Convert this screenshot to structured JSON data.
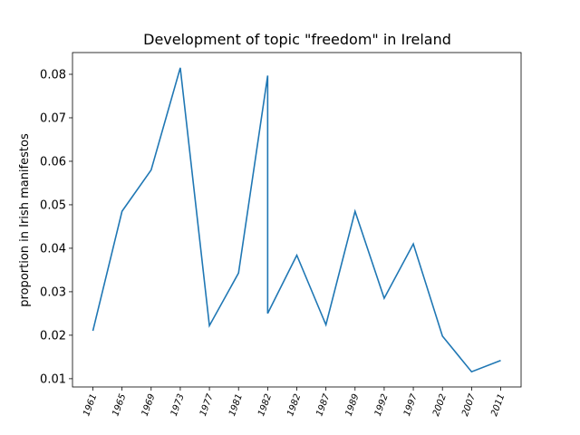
{
  "chart_data": {
    "type": "line",
    "title": "Development of topic \"freedom\" in Ireland",
    "ylabel": "proportion in Irish manifestos",
    "x": [
      0,
      1,
      2,
      3,
      4,
      5,
      6,
      6,
      7,
      8,
      9,
      10,
      11,
      12,
      13,
      14
    ],
    "series": [
      {
        "name": "freedom",
        "color": "#1f77b4",
        "values": [
          0.021,
          0.0485,
          0.058,
          0.0815,
          0.0222,
          0.0343,
          0.0797,
          0.025,
          0.0384,
          0.0224,
          0.0485,
          0.0285,
          0.041,
          0.0198,
          0.0116,
          0.0142
        ]
      }
    ],
    "xlim": [
      -0.7,
      14.7
    ],
    "xticks": [
      {
        "value": 0,
        "label": "1961"
      },
      {
        "value": 1,
        "label": "1965"
      },
      {
        "value": 2,
        "label": "1969"
      },
      {
        "value": 3,
        "label": "1973"
      },
      {
        "value": 4,
        "label": "1977"
      },
      {
        "value": 5,
        "label": "1981"
      },
      {
        "value": 6,
        "label": "1982"
      },
      {
        "value": 7,
        "label": "1982"
      },
      {
        "value": 8,
        "label": "1987"
      },
      {
        "value": 9,
        "label": "1989"
      },
      {
        "value": 10,
        "label": "1992"
      },
      {
        "value": 11,
        "label": "1997"
      },
      {
        "value": 12,
        "label": "2002"
      },
      {
        "value": 13,
        "label": "2007"
      },
      {
        "value": 14,
        "label": "2011"
      }
    ],
    "ylim": [
      0.0081,
      0.085
    ],
    "yticks": [
      {
        "value": 0.01,
        "label": "0.01"
      },
      {
        "value": 0.02,
        "label": "0.02"
      },
      {
        "value": 0.03,
        "label": "0.03"
      },
      {
        "value": 0.04,
        "label": "0.04"
      },
      {
        "value": 0.05,
        "label": "0.05"
      },
      {
        "value": 0.06,
        "label": "0.06"
      },
      {
        "value": 0.07,
        "label": "0.07"
      },
      {
        "value": 0.08,
        "label": "0.08"
      }
    ]
  }
}
